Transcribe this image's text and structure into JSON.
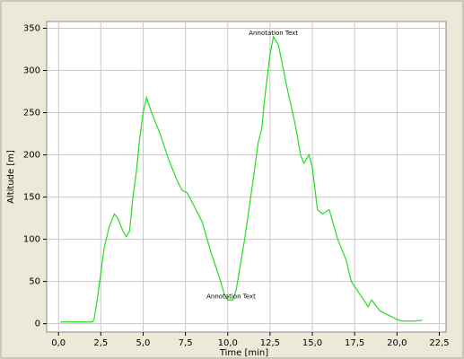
{
  "chart_data": {
    "type": "line",
    "x_label": "Time [min]",
    "y_label": "Altitude [m]",
    "xlim": [
      -0.7,
      22.9
    ],
    "ylim": [
      -10,
      358
    ],
    "xticks": [
      {
        "value": 0,
        "label": "0,0"
      },
      {
        "value": 2.5,
        "label": "2,5"
      },
      {
        "value": 5,
        "label": "5,0"
      },
      {
        "value": 7.5,
        "label": "7,5"
      },
      {
        "value": 10,
        "label": "10,0"
      },
      {
        "value": 12.5,
        "label": "12,5"
      },
      {
        "value": 15,
        "label": "15,0"
      },
      {
        "value": 17.5,
        "label": "17,5"
      },
      {
        "value": 20,
        "label": "20,0"
      },
      {
        "value": 22.5,
        "label": "22,5"
      }
    ],
    "yticks": [
      0,
      50,
      100,
      150,
      200,
      250,
      300,
      350
    ],
    "grid": true,
    "annotations": [
      {
        "text": "Annotation Text",
        "x": 12.7,
        "y": 340
      },
      {
        "text": "Annotation Text",
        "x": 10.2,
        "y": 28
      }
    ],
    "series": [
      {
        "name": "Altitude",
        "color": "#22dd22",
        "x": [
          0.1,
          1,
          2,
          2.1,
          2.3,
          2.5,
          2.7,
          3,
          3.3,
          3.5,
          3.8,
          4,
          4.2,
          4.4,
          4.6,
          4.8,
          5,
          5.2,
          5.5,
          6,
          6.5,
          7,
          7.3,
          7.6,
          8,
          8.5,
          9,
          9.5,
          9.8,
          10,
          10.3,
          10.5,
          11,
          11.5,
          11.8,
          12,
          12.2,
          12.5,
          12.7,
          13,
          13.5,
          14,
          14.3,
          14.5,
          14.8,
          15,
          15.3,
          15.6,
          16,
          16.5,
          17,
          17.3,
          17.8,
          18.3,
          18.5,
          19,
          19.5,
          20,
          20.3,
          21,
          21.5
        ],
        "values": [
          2,
          2,
          2,
          5,
          30,
          60,
          90,
          115,
          130,
          125,
          110,
          103,
          110,
          150,
          180,
          220,
          250,
          268,
          250,
          225,
          195,
          170,
          158,
          155,
          140,
          120,
          85,
          55,
          35,
          28,
          28,
          40,
          100,
          170,
          215,
          230,
          270,
          320,
          340,
          330,
          280,
          235,
          200,
          190,
          200,
          185,
          135,
          130,
          135,
          100,
          75,
          50,
          35,
          20,
          28,
          15,
          10,
          5,
          3,
          3,
          4
        ]
      }
    ]
  }
}
